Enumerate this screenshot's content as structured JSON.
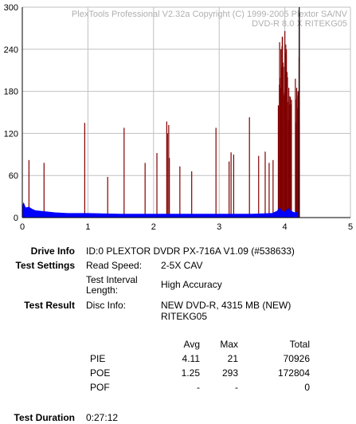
{
  "chart_data": {
    "type": "bar",
    "watermark": [
      "PlexTools Professional V2.32a Copyright (C) 1999-2005 Plextor SA/NV",
      "DVD-R   8.0 X   RITEKG05"
    ],
    "xlim": [
      0,
      5
    ],
    "ylim": [
      0,
      300
    ],
    "xticks": [
      "0",
      "1",
      "2",
      "3",
      "4",
      "5"
    ],
    "yticks": [
      "0",
      "60",
      "120",
      "180",
      "240",
      "300"
    ],
    "grid": true,
    "colors": {
      "poe": "#800000",
      "pie": "#0000ff",
      "grid": "#c0c0c0",
      "marker": "#000000"
    },
    "end_marker_x": 4.22,
    "series": [
      {
        "id": "poe",
        "x": [
          0.1,
          0.33,
          0.95,
          1.3,
          1.55,
          1.87,
          2.05,
          2.2,
          2.21,
          2.23,
          2.24,
          2.4,
          2.58,
          2.95,
          3.15,
          3.18,
          3.22,
          3.46,
          3.6,
          3.7,
          3.76,
          3.82,
          3.9,
          3.92,
          3.94,
          3.96,
          3.98,
          4.0,
          4.02,
          4.04,
          4.06,
          4.08,
          4.1,
          4.16,
          4.18,
          4.2,
          4.22
        ],
        "values": [
          82,
          78,
          135,
          58,
          128,
          78,
          92,
          137,
          120,
          132,
          85,
          73,
          66,
          128,
          80,
          93,
          90,
          143,
          88,
          94,
          78,
          82,
          160,
          250,
          240,
          258,
          215,
          266,
          240,
          200,
          185,
          172,
          168,
          198,
          185,
          180,
          293
        ]
      },
      {
        "id": "pie",
        "points": [
          [
            0,
            16
          ],
          [
            0.02,
            21
          ],
          [
            0.05,
            14
          ],
          [
            0.1,
            15
          ],
          [
            0.15,
            12
          ],
          [
            0.2,
            10
          ],
          [
            0.3,
            9
          ],
          [
            0.4,
            8
          ],
          [
            0.5,
            7
          ],
          [
            0.7,
            6
          ],
          [
            1.0,
            6
          ],
          [
            1.5,
            5
          ],
          [
            2.0,
            5
          ],
          [
            2.5,
            5
          ],
          [
            3.0,
            5
          ],
          [
            3.5,
            5
          ],
          [
            3.8,
            6
          ],
          [
            3.88,
            9
          ],
          [
            3.92,
            14
          ],
          [
            3.95,
            10
          ],
          [
            4.0,
            8
          ],
          [
            4.05,
            13
          ],
          [
            4.1,
            9
          ],
          [
            4.15,
            7
          ],
          [
            4.2,
            8
          ]
        ]
      }
    ]
  },
  "info": {
    "drive_info_label": "Drive Info",
    "drive_info_value": "ID:0 PLEXTOR DVDR PX-716A V1.09 (#538633)",
    "test_settings_label": "Test Settings",
    "read_speed_label": "Read Speed:",
    "read_speed_value": "2-5X CAV",
    "interval_label_1": "Test Interval",
    "interval_label_2": "Length:",
    "interval_value": "High Accuracy",
    "test_result_label": "Test Result",
    "disc_info_label": "Disc Info:",
    "disc_info_value_1": "NEW DVD-R, 4315 MB (NEW)",
    "disc_info_value_2": "RITEKG05",
    "test_duration_label": "Test Duration",
    "test_duration_value": "0:27:12"
  },
  "stats": {
    "headers": {
      "avg": "Avg",
      "max": "Max",
      "total": "Total"
    },
    "rows": [
      {
        "name": "PIE",
        "avg": "4.11",
        "max": "21",
        "total": "70926"
      },
      {
        "name": "POE",
        "avg": "1.25",
        "max": "293",
        "total": "172804"
      },
      {
        "name": "POF",
        "avg": "-",
        "max": "-",
        "total": "0"
      }
    ]
  }
}
